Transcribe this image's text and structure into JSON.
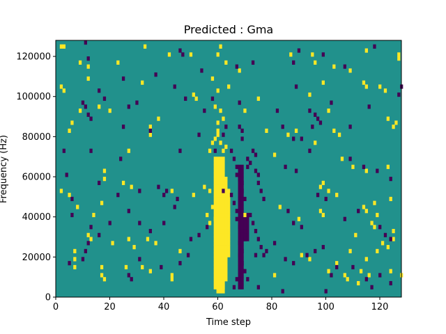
{
  "chart_data": {
    "type": "heatmap",
    "title": "Predicted : Gma",
    "xlabel": "Time step",
    "ylabel": "Frequency (Hz)",
    "xlim": [
      0,
      128
    ],
    "ylim": [
      0,
      128000
    ],
    "x_ticks": [
      0,
      20,
      40,
      60,
      80,
      100,
      120
    ],
    "y_ticks": [
      0,
      20000,
      40000,
      60000,
      80000,
      100000,
      120000
    ],
    "x_tick_labels": [
      "0",
      "20",
      "40",
      "60",
      "80",
      "100",
      "120"
    ],
    "y_tick_labels": [
      "0",
      "20000",
      "40000",
      "60000",
      "80000",
      "100000",
      "120000"
    ],
    "grid": false,
    "n_time_steps": 128,
    "n_freq_bins": 64,
    "colors": {
      "background": "#21918c",
      "high": "#fde725",
      "low": "#440154"
    },
    "high_cells": [
      [
        2,
        124000
      ],
      [
        3,
        124000
      ],
      [
        33,
        124000
      ],
      [
        42,
        120000
      ],
      [
        50,
        120000
      ],
      [
        61,
        124000
      ],
      [
        60,
        120000
      ],
      [
        87,
        120000
      ],
      [
        95,
        120000
      ],
      [
        115,
        122000
      ],
      [
        127,
        120000
      ],
      [
        127,
        118000
      ],
      [
        9,
        116000
      ],
      [
        12,
        114000
      ],
      [
        23,
        116000
      ],
      [
        63,
        116000
      ],
      [
        68,
        112000
      ],
      [
        96,
        116000
      ],
      [
        103,
        114000
      ],
      [
        109,
        112000
      ],
      [
        12,
        108000
      ],
      [
        32,
        106000
      ],
      [
        58,
        108000
      ],
      [
        99,
        106000
      ],
      [
        2,
        104000
      ],
      [
        3,
        102000
      ],
      [
        51,
        100000
      ],
      [
        52,
        98000
      ],
      [
        60,
        102000
      ],
      [
        64,
        104000
      ],
      [
        75,
        98000
      ],
      [
        94,
        100000
      ],
      [
        115,
        104000
      ],
      [
        114,
        106000
      ],
      [
        120,
        104000
      ],
      [
        122,
        102000
      ],
      [
        9,
        92000
      ],
      [
        16,
        94000
      ],
      [
        20,
        92000
      ],
      [
        59,
        94000
      ],
      [
        70,
        92000
      ],
      [
        101,
        92000
      ],
      [
        38,
        88000
      ],
      [
        6,
        86000
      ],
      [
        5,
        82000
      ],
      [
        35,
        84000
      ],
      [
        35,
        80000
      ],
      [
        60,
        86000
      ],
      [
        60,
        82000
      ],
      [
        78,
        82000
      ],
      [
        89,
        82000
      ],
      [
        103,
        82000
      ],
      [
        125,
        84000
      ],
      [
        126,
        86000
      ],
      [
        123,
        88000
      ],
      [
        105,
        80000
      ],
      [
        62,
        88000
      ],
      [
        86,
        80000
      ],
      [
        61,
        92000
      ],
      [
        96,
        76000
      ],
      [
        27,
        72000
      ],
      [
        57,
        72000
      ],
      [
        58,
        76000
      ],
      [
        59,
        78000
      ],
      [
        60,
        80000
      ],
      [
        61,
        76000
      ],
      [
        62,
        72000
      ],
      [
        63,
        74000
      ],
      [
        81,
        70000
      ],
      [
        106,
        68000
      ],
      [
        110,
        64000
      ],
      [
        115,
        62000
      ],
      [
        123,
        64000
      ],
      [
        18,
        62000
      ],
      [
        18,
        58000
      ],
      [
        25,
        56000
      ],
      [
        28,
        54000
      ],
      [
        43,
        52000
      ],
      [
        51,
        50000
      ],
      [
        55,
        54000
      ],
      [
        57,
        52000
      ],
      [
        2,
        52000
      ],
      [
        5,
        50000
      ],
      [
        8,
        44000
      ],
      [
        14,
        40000
      ],
      [
        17,
        46000
      ],
      [
        98,
        54000
      ],
      [
        99,
        56000
      ],
      [
        101,
        52000
      ],
      [
        104,
        50000
      ],
      [
        98,
        42000
      ],
      [
        99,
        40000
      ],
      [
        114,
        44000
      ],
      [
        115,
        42000
      ],
      [
        118,
        46000
      ],
      [
        119,
        40000
      ],
      [
        124,
        48000
      ],
      [
        58,
        44000
      ],
      [
        56,
        40000
      ],
      [
        57,
        36000
      ],
      [
        59,
        38000
      ],
      [
        70,
        40000
      ],
      [
        83,
        44000
      ],
      [
        90,
        38000
      ],
      [
        117,
        36000
      ],
      [
        12,
        30000
      ],
      [
        13,
        28000
      ],
      [
        21,
        26000
      ],
      [
        27,
        28000
      ],
      [
        29,
        24000
      ],
      [
        34,
        28000
      ],
      [
        37,
        26000
      ],
      [
        46,
        22000
      ],
      [
        7,
        22000
      ],
      [
        7,
        18000
      ],
      [
        111,
        30000
      ],
      [
        118,
        34000
      ],
      [
        125,
        32000
      ],
      [
        125,
        28000
      ],
      [
        123,
        24000
      ],
      [
        109,
        22000
      ],
      [
        115,
        18000
      ],
      [
        17,
        14000
      ],
      [
        17,
        10000
      ],
      [
        18,
        8000
      ],
      [
        26,
        14000
      ],
      [
        32,
        14000
      ],
      [
        43,
        10000
      ],
      [
        43,
        8000
      ],
      [
        35,
        12000
      ],
      [
        7,
        14000
      ],
      [
        81,
        10000
      ],
      [
        91,
        20000
      ],
      [
        94,
        18000
      ],
      [
        104,
        16000
      ],
      [
        107,
        10000
      ],
      [
        108,
        8000
      ],
      [
        119,
        22000
      ],
      [
        121,
        26000
      ],
      [
        124,
        12000
      ],
      [
        128,
        10000
      ],
      [
        113,
        12000
      ],
      [
        112,
        6000
      ],
      [
        116,
        10000
      ],
      [
        101,
        12000
      ]
    ],
    "low_cells": [
      [
        11,
        126000
      ],
      [
        12,
        118000
      ],
      [
        46,
        122000
      ],
      [
        47,
        120000
      ],
      [
        37,
        110000
      ],
      [
        54,
        112000
      ],
      [
        67,
        114000
      ],
      [
        73,
        116000
      ],
      [
        90,
        122000
      ],
      [
        99,
        120000
      ],
      [
        107,
        114000
      ],
      [
        118,
        124000
      ],
      [
        10,
        96000
      ],
      [
        11,
        94000
      ],
      [
        12,
        90000
      ],
      [
        13,
        88000
      ],
      [
        27,
        94000
      ],
      [
        30,
        96000
      ],
      [
        48,
        98000
      ],
      [
        55,
        92000
      ],
      [
        58,
        98000
      ],
      [
        68,
        96000
      ],
      [
        82,
        92000
      ],
      [
        89,
        104000
      ],
      [
        94,
        92000
      ],
      [
        96,
        90000
      ],
      [
        97,
        88000
      ],
      [
        98,
        86000
      ],
      [
        102,
        96000
      ],
      [
        116,
        94000
      ],
      [
        127,
        100000
      ],
      [
        128,
        104000
      ],
      [
        18,
        98000
      ],
      [
        16,
        102000
      ],
      [
        25,
        108000
      ],
      [
        44,
        104000
      ],
      [
        88,
        116000
      ],
      [
        25,
        84000
      ],
      [
        35,
        82000
      ],
      [
        53,
        80000
      ],
      [
        62,
        80000
      ],
      [
        63,
        84000
      ],
      [
        68,
        84000
      ],
      [
        69,
        82000
      ],
      [
        69,
        78000
      ],
      [
        84,
        84000
      ],
      [
        88,
        78000
      ],
      [
        91,
        78000
      ],
      [
        95,
        84000
      ],
      [
        109,
        84000
      ],
      [
        3,
        72000
      ],
      [
        13,
        72000
      ],
      [
        24,
        68000
      ],
      [
        46,
        72000
      ],
      [
        59,
        72000
      ],
      [
        65,
        72000
      ],
      [
        66,
        68000
      ],
      [
        67,
        64000
      ],
      [
        67,
        60000
      ],
      [
        68,
        58000
      ],
      [
        69,
        56000
      ],
      [
        69,
        52000
      ],
      [
        70,
        48000
      ],
      [
        71,
        68000
      ],
      [
        72,
        66000
      ],
      [
        71,
        64000
      ],
      [
        73,
        72000
      ],
      [
        74,
        70000
      ],
      [
        74,
        62000
      ],
      [
        75,
        60000
      ],
      [
        75,
        56000
      ],
      [
        76,
        52000
      ],
      [
        77,
        48000
      ],
      [
        85,
        64000
      ],
      [
        89,
        62000
      ],
      [
        94,
        72000
      ],
      [
        109,
        68000
      ],
      [
        114,
        64000
      ],
      [
        119,
        62000
      ],
      [
        124,
        58000
      ],
      [
        4,
        60000
      ],
      [
        16,
        56000
      ],
      [
        23,
        50000
      ],
      [
        31,
        52000
      ],
      [
        38,
        54000
      ],
      [
        40,
        50000
      ],
      [
        41,
        52000
      ],
      [
        45,
        48000
      ],
      [
        62,
        52000
      ],
      [
        65,
        50000
      ],
      [
        66,
        46000
      ],
      [
        67,
        42000
      ],
      [
        67,
        38000
      ],
      [
        68,
        34000
      ],
      [
        69,
        30000
      ],
      [
        70,
        28000
      ],
      [
        68,
        26000
      ],
      [
        69,
        22000
      ],
      [
        68,
        20000
      ],
      [
        69,
        16000
      ],
      [
        70,
        12000
      ],
      [
        71,
        8000
      ],
      [
        72,
        40000
      ],
      [
        73,
        36000
      ],
      [
        74,
        32000
      ],
      [
        75,
        28000
      ],
      [
        76,
        24000
      ],
      [
        77,
        20000
      ],
      [
        86,
        42000
      ],
      [
        88,
        36000
      ],
      [
        91,
        34000
      ],
      [
        97,
        50000
      ],
      [
        100,
        48000
      ],
      [
        107,
        38000
      ],
      [
        112,
        42000
      ],
      [
        120,
        34000
      ],
      [
        122,
        30000
      ],
      [
        124,
        28000
      ],
      [
        6,
        48000
      ],
      [
        6,
        40000
      ],
      [
        13,
        34000
      ],
      [
        16,
        30000
      ],
      [
        20,
        36000
      ],
      [
        27,
        42000
      ],
      [
        31,
        36000
      ],
      [
        35,
        32000
      ],
      [
        40,
        36000
      ],
      [
        44,
        44000
      ],
      [
        5,
        16000
      ],
      [
        10,
        18000
      ],
      [
        11,
        22000
      ],
      [
        12,
        26000
      ],
      [
        27,
        10000
      ],
      [
        28,
        8000
      ],
      [
        31,
        18000
      ],
      [
        39,
        14000
      ],
      [
        46,
        16000
      ],
      [
        49,
        20000
      ],
      [
        50,
        28000
      ],
      [
        53,
        30000
      ],
      [
        56,
        34000
      ],
      [
        74,
        20000
      ],
      [
        78,
        22000
      ],
      [
        81,
        26000
      ],
      [
        85,
        18000
      ],
      [
        88,
        16000
      ],
      [
        93,
        20000
      ],
      [
        96,
        22000
      ],
      [
        99,
        24000
      ],
      [
        100,
        2000
      ],
      [
        102,
        10000
      ],
      [
        104,
        14000
      ],
      [
        110,
        14000
      ],
      [
        115,
        8000
      ],
      [
        117,
        4000
      ],
      [
        120,
        10000
      ],
      [
        124,
        6000
      ],
      [
        75,
        4000
      ],
      [
        84,
        2000
      ],
      [
        66,
        4000
      ],
      [
        67,
        8000
      ]
    ]
  }
}
